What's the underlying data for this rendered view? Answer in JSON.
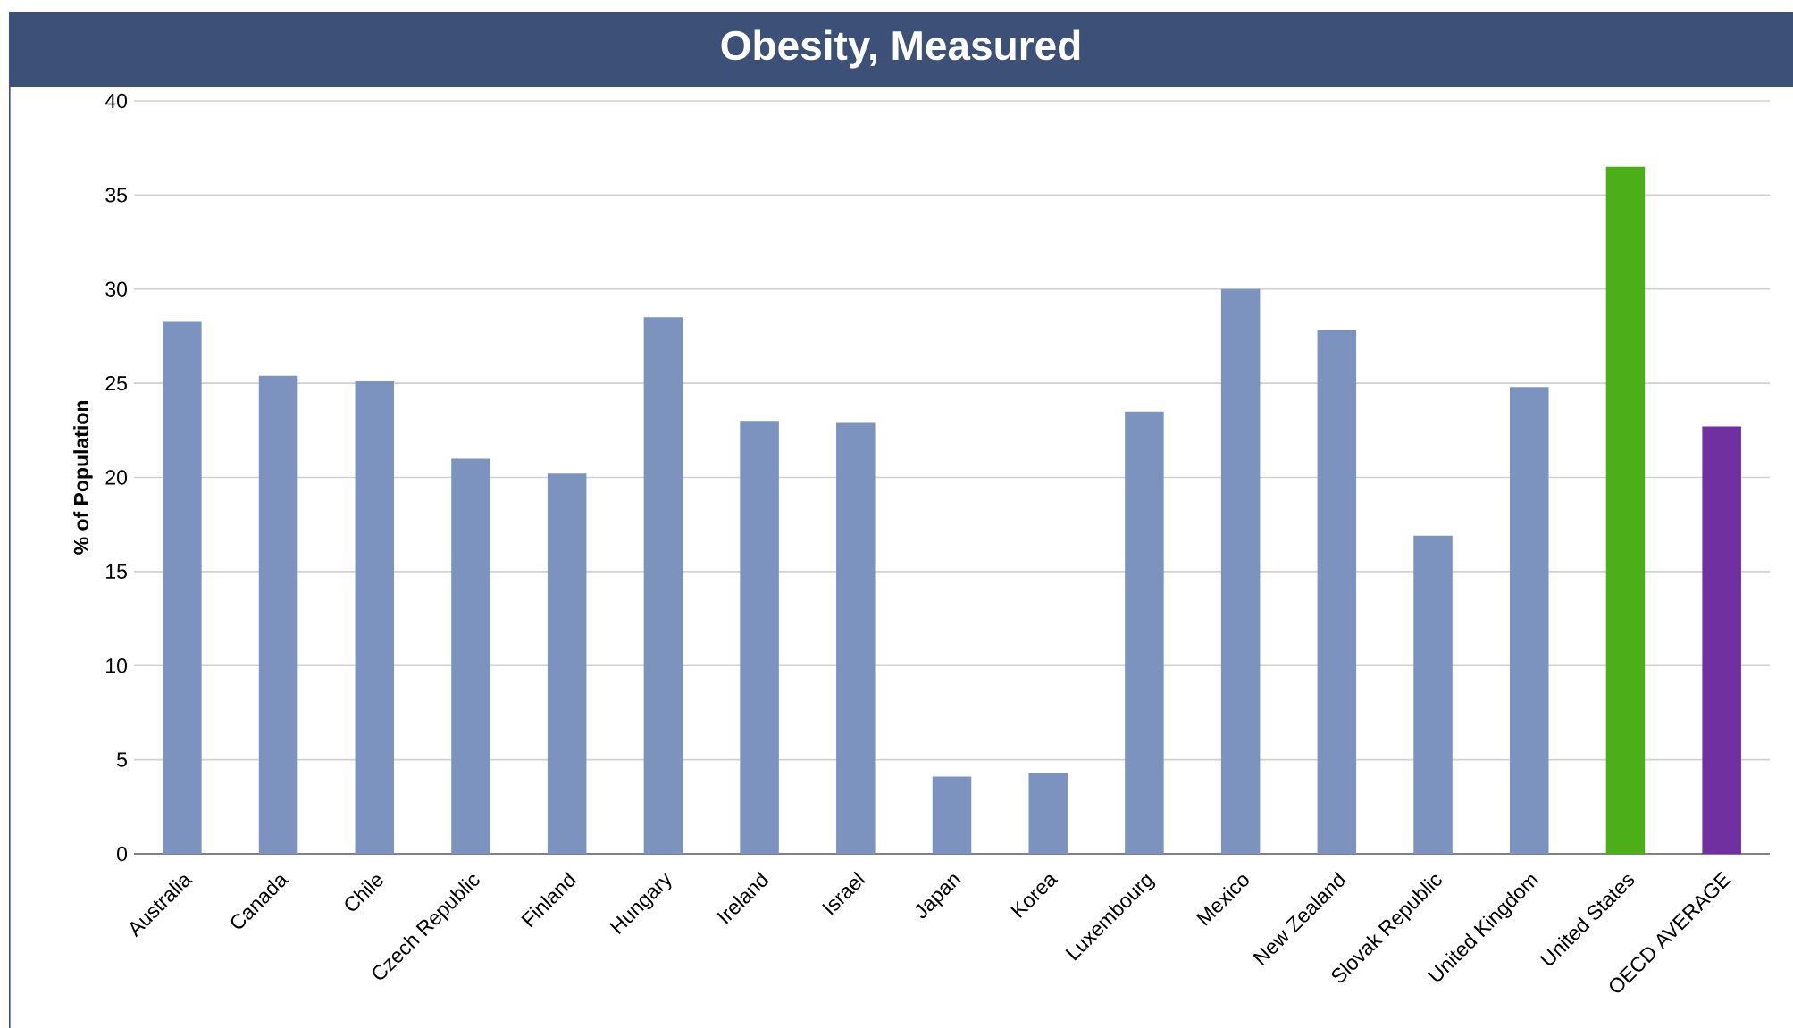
{
  "chart_data": {
    "type": "bar",
    "title": "Obesity, Measured",
    "ylabel": "% of Population",
    "categories": [
      "Australia",
      "Canada",
      "Chile",
      "Czech Republic",
      "Finland",
      "Hungary",
      "Ireland",
      "Israel",
      "Japan",
      "Korea",
      "Luxembourg",
      "Mexico",
      "New Zealand",
      "Slovak Republic",
      "United Kingdom",
      "United States",
      "OECD AVERAGE"
    ],
    "values": [
      28.3,
      25.4,
      25.1,
      21.0,
      20.2,
      28.5,
      23.0,
      22.9,
      4.1,
      4.3,
      23.5,
      30.0,
      27.8,
      16.9,
      24.8,
      36.5,
      22.7
    ],
    "colors": [
      "#7b93be",
      "#7b93be",
      "#7b93be",
      "#7b93be",
      "#7b93be",
      "#7b93be",
      "#7b93be",
      "#7b93be",
      "#7b93be",
      "#7b93be",
      "#7b93be",
      "#7b93be",
      "#7b93be",
      "#7b93be",
      "#7b93be",
      "#4caf1a",
      "#7030a0"
    ],
    "ylim": [
      0,
      40
    ],
    "yticks": [
      0,
      5,
      10,
      15,
      20,
      25,
      30,
      35,
      40
    ],
    "grid": "y"
  }
}
